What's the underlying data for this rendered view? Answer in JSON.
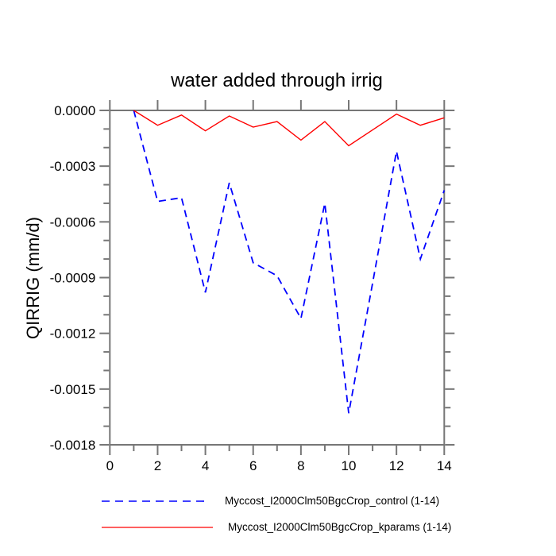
{
  "chart_data": {
    "type": "line",
    "title": "water added through irrig",
    "xlabel": "",
    "ylabel": "QIRRIG (mm/d)",
    "xlim": [
      0,
      14
    ],
    "ylim": [
      -0.0018,
      0
    ],
    "grid": false,
    "legend_position": "bottom",
    "axis_color": "#767676",
    "x": [
      1,
      2,
      3,
      4,
      5,
      6,
      7,
      8,
      9,
      10,
      11,
      12,
      13,
      14
    ],
    "series": [
      {
        "name": "Myccost_I2000Clm50BgcCrop_control (1-14)",
        "color": "#0000ff",
        "style": "dashed",
        "values": [
          0.0,
          -0.00049,
          -0.00047,
          -0.00098,
          -0.00039,
          -0.00082,
          -0.00089,
          -0.00112,
          -0.0005,
          -0.00163,
          -0.00093,
          -0.00022,
          -0.0008,
          -0.00043
        ]
      },
      {
        "name": "Myccost_I2000Clm50BgcCrop_kparams (1-14)",
        "color": "#ff0000",
        "style": "solid",
        "values": [
          0.0,
          -8e-05,
          -2.5e-05,
          -0.00011,
          -3e-05,
          -9e-05,
          -6e-05,
          -0.00016,
          -6e-05,
          -0.00019,
          -0.000105,
          -2e-05,
          -8e-05,
          -4e-05
        ]
      }
    ],
    "axes": {
      "x_major": [
        0,
        2,
        4,
        6,
        8,
        10,
        12,
        14
      ],
      "x_major_labels": [
        "0",
        "2",
        "4",
        "6",
        "8",
        "10",
        "12",
        "14"
      ],
      "x_minor": [
        1,
        3,
        5,
        7,
        9,
        11,
        13
      ],
      "y_major": [
        0,
        -0.0003,
        -0.0006,
        -0.0009,
        -0.0012,
        -0.0015,
        -0.0018
      ],
      "y_major_labels": [
        "0.0000",
        "-0.0003",
        "-0.0006",
        "-0.0009",
        "-0.0012",
        "-0.0015",
        "-0.0018"
      ],
      "y_minor": [
        -0.0001,
        -0.0002,
        -0.0004,
        -0.0005,
        -0.0007,
        -0.0008,
        -0.001,
        -0.0011,
        -0.0013,
        -0.0014,
        -0.0016,
        -0.0017
      ]
    }
  }
}
